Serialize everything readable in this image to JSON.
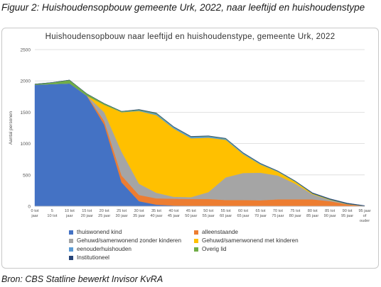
{
  "caption": "Figuur 2: Huishoudensopbouw gemeente Urk, 2022, naar leeftijd en huishoudenstype",
  "source": "Bron: CBS Statline bewerkt Invisor KvRA",
  "chart_data": {
    "type": "area",
    "stacked": true,
    "title": "Huishoudensopbouw naar leeftijd en huishoudenstype, gemeente Urk, 2022",
    "xlabel": "",
    "ylabel": "Aantal personen",
    "ylim": [
      0,
      2500
    ],
    "yticks": [
      0,
      500,
      1000,
      1500,
      2000,
      2500
    ],
    "grid": true,
    "legend_position": "bottom",
    "categories": [
      "0 tot 5 jaar",
      "5 tot 10 jaar",
      "10 tot 15 jaar",
      "15 tot 20 jaar",
      "20 tot 25 jaar",
      "25 tot 30 jaar",
      "30 tot 35 jaar",
      "35 tot 40 jaar",
      "40 tot 45 jaar",
      "45 tot 50 jaar",
      "50 tot 55 jaar",
      "55 tot 60 jaar",
      "60 tot 65 jaar",
      "65 tot 70 jaar",
      "70 tot 75 jaar",
      "75 tot 80 jaar",
      "80 tot 85 jaar",
      "85 tot 90 jaar",
      "90 tot 95 jaar",
      "95 jaar of ouder"
    ],
    "tick_lines": [
      [
        "0 tot",
        "jaar"
      ],
      [
        "5",
        "10 tot"
      ],
      [
        "10 tot",
        "jaar"
      ],
      [
        "15 tot",
        "20 jaar"
      ],
      [
        "20 tot",
        "25 jaar"
      ],
      [
        "25 tot",
        "30 jaar"
      ],
      [
        "30 tot",
        "35 jaar"
      ],
      [
        "35 tot",
        "40 jaar"
      ],
      [
        "40 tot",
        "45 jaar"
      ],
      [
        "45 tot",
        "50 jaar"
      ],
      [
        "50 tot",
        "55 jaar"
      ],
      [
        "55 tot",
        "60 jaar"
      ],
      [
        "60 tot",
        "65 jaar"
      ],
      [
        "65 tot",
        "70 jaar"
      ],
      [
        "70 tot",
        "75 jaar"
      ],
      [
        "75 tot",
        "80 jaar"
      ],
      [
        "80 tot",
        "85 jaar"
      ],
      [
        "85 tot",
        "90 jaar"
      ],
      [
        "90 tot",
        "95 jaar"
      ],
      [
        "95 jaar",
        "of",
        "ouder"
      ]
    ],
    "series": [
      {
        "name": "thuiswonend kind",
        "color": "#4472C4",
        "values": [
          1940,
          1950,
          1960,
          1760,
          1300,
          380,
          80,
          25,
          10,
          5,
          5,
          0,
          0,
          0,
          0,
          0,
          0,
          0,
          0,
          0
        ]
      },
      {
        "name": "alleenstaande",
        "color": "#ED7D31",
        "values": [
          0,
          0,
          0,
          5,
          60,
          110,
          100,
          100,
          110,
          110,
          110,
          100,
          100,
          95,
          110,
          110,
          110,
          80,
          30,
          5
        ]
      },
      {
        "name": "Gehuwd/samenwonend zonder kinderen",
        "color": "#A5A5A5",
        "values": [
          0,
          0,
          0,
          0,
          140,
          380,
          180,
          90,
          30,
          30,
          110,
          360,
          430,
          440,
          380,
          250,
          80,
          20,
          5,
          0
        ]
      },
      {
        "name": "Gehuwd/samenwonend met kinderen",
        "color": "#FFC000",
        "values": [
          0,
          0,
          0,
          0,
          120,
          630,
          1160,
          1240,
          1090,
          940,
          870,
          600,
          300,
          130,
          60,
          30,
          10,
          5,
          0,
          0
        ]
      },
      {
        "name": "eenouderhuishouden",
        "color": "#5B9BD5",
        "values": [
          0,
          0,
          0,
          0,
          0,
          5,
          10,
          20,
          20,
          20,
          20,
          15,
          15,
          10,
          5,
          5,
          0,
          0,
          0,
          0
        ]
      },
      {
        "name": "Overig lid",
        "color": "#70AD47",
        "values": [
          10,
          25,
          55,
          30,
          20,
          10,
          10,
          10,
          5,
          5,
          5,
          5,
          5,
          5,
          5,
          5,
          5,
          5,
          5,
          0
        ]
      },
      {
        "name": "Institutioneel",
        "color": "#264478",
        "values": [
          0,
          0,
          0,
          0,
          0,
          0,
          5,
          5,
          5,
          5,
          5,
          5,
          5,
          5,
          5,
          5,
          10,
          10,
          10,
          5
        ]
      }
    ]
  }
}
